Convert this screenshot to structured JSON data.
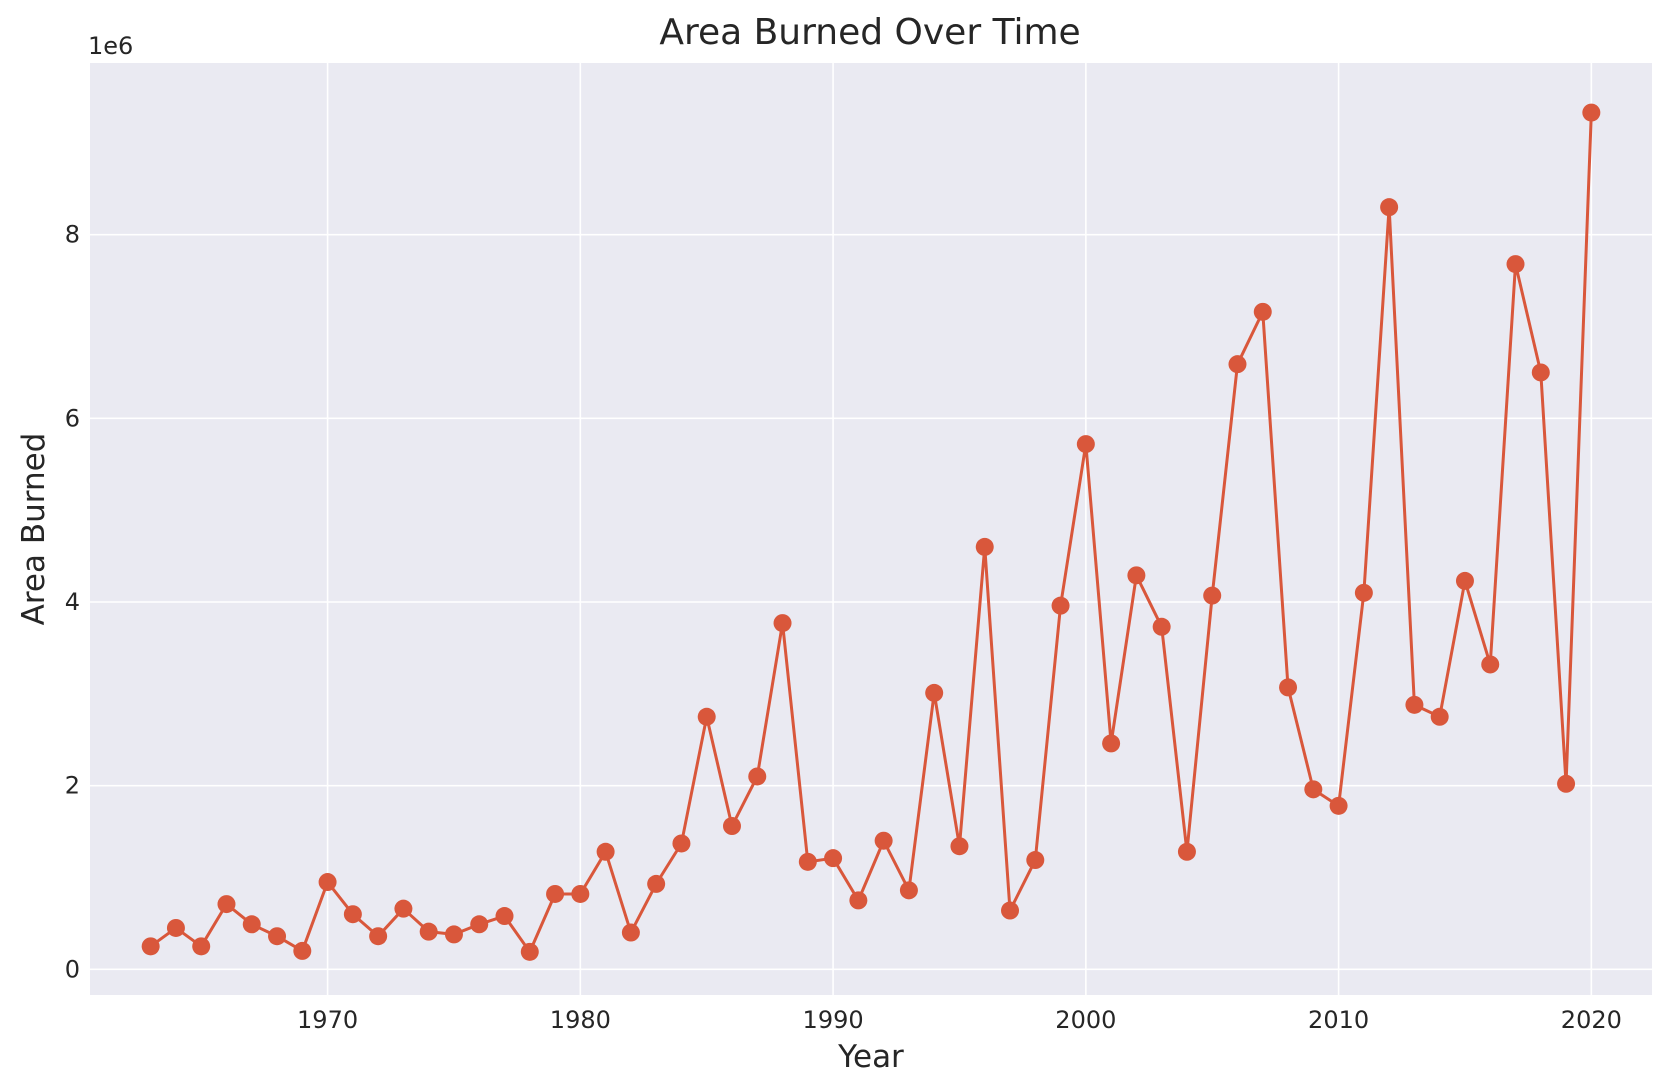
{
  "chart_data": {
    "type": "line",
    "title": "Area Burned Over Time",
    "xlabel": "Year",
    "ylabel": "Area Burned",
    "y_offset_label": "1e6",
    "style": {
      "background": "#EAEAF2",
      "grid": true,
      "grid_color": "#FFFFFF",
      "line_color": "#D9573B",
      "marker": "circle"
    },
    "xlim": [
      1960.6,
      2022.4
    ],
    "ylim": [
      -0.28,
      9.87
    ],
    "x_ticks": [
      1970,
      1980,
      1990,
      2000,
      2010,
      2020
    ],
    "x_tick_labels": [
      "1970",
      "1980",
      "1990",
      "2000",
      "2010",
      "2020"
    ],
    "y_ticks": [
      0,
      2,
      4,
      6,
      8
    ],
    "y_tick_labels": [
      "0",
      "2",
      "4",
      "6",
      "8"
    ],
    "y_unit_scale": 1000000,
    "series": [
      {
        "x": [
          1963,
          1964,
          1965,
          1966,
          1967,
          1968,
          1969,
          1970,
          1971,
          1972,
          1973,
          1974,
          1975,
          1976,
          1977,
          1978,
          1979,
          1980,
          1981,
          1982,
          1983,
          1984,
          1985,
          1986,
          1987,
          1988,
          1989,
          1990,
          1991,
          1992,
          1993,
          1994,
          1995,
          1996,
          1997,
          1998,
          1999,
          2000,
          2001,
          2002,
          2003,
          2004,
          2005,
          2006,
          2007,
          2008,
          2009,
          2010,
          2011,
          2012,
          2013,
          2014,
          2015,
          2016,
          2017,
          2018,
          2019,
          2020
        ],
        "y": [
          0.25,
          0.45,
          0.25,
          0.71,
          0.49,
          0.36,
          0.2,
          0.95,
          0.6,
          0.36,
          0.66,
          0.41,
          0.38,
          0.49,
          0.58,
          0.19,
          0.82,
          0.82,
          1.28,
          0.4,
          0.93,
          1.37,
          2.75,
          1.56,
          2.1,
          3.77,
          1.17,
          1.21,
          0.75,
          1.4,
          0.86,
          3.01,
          1.34,
          4.6,
          0.64,
          1.19,
          3.96,
          5.72,
          2.46,
          4.29,
          3.73,
          1.28,
          4.07,
          6.59,
          7.16,
          3.07,
          1.96,
          1.78,
          4.1,
          8.3,
          2.88,
          2.75,
          4.23,
          3.32,
          7.68,
          6.5,
          2.02,
          9.33
        ]
      }
    ]
  }
}
